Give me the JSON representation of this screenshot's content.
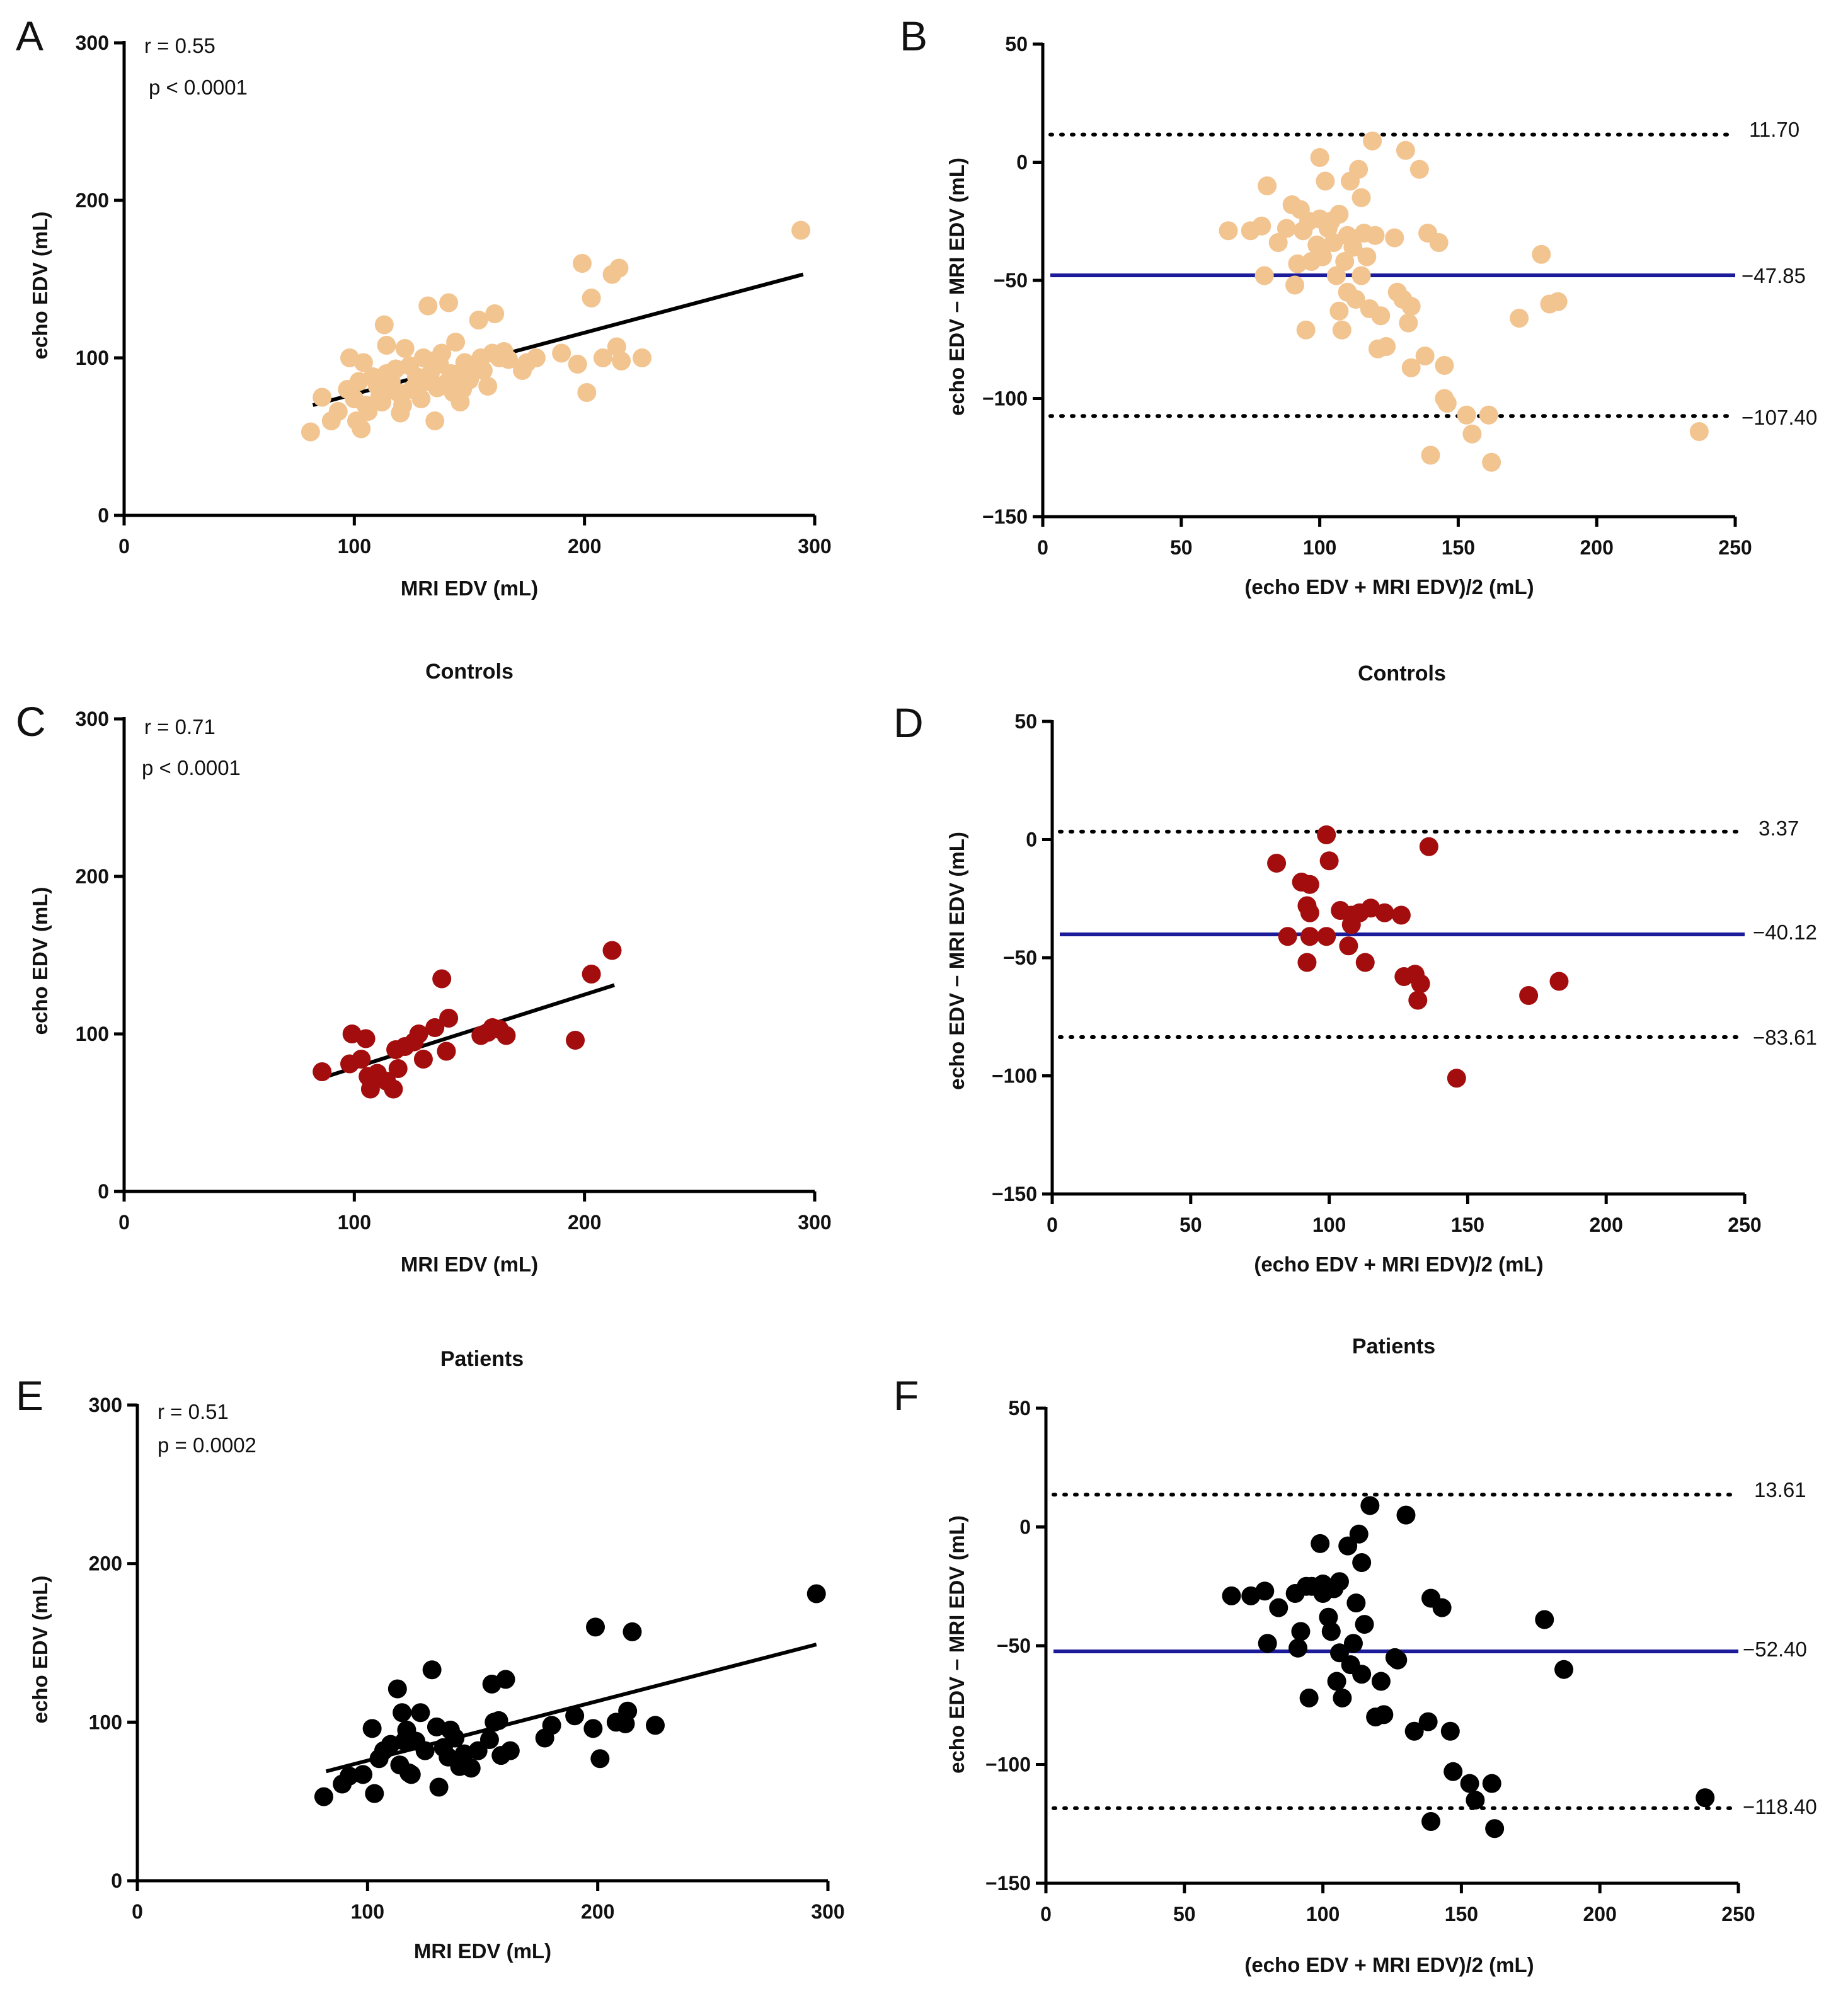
{
  "colors": {
    "panel_AB": "#f2c490",
    "panel_CD": "#a30d0d",
    "panel_EF": "#000000",
    "mean_line": "#1c1c9a"
  },
  "chart_data": [
    {
      "id": "A",
      "type": "scatter",
      "letter": "A",
      "title": "",
      "xlabel": "MRI EDV (mL)",
      "ylabel": "echo EDV (mL)",
      "xlim": [
        0,
        300
      ],
      "ylim": [
        0,
        300
      ],
      "xticks": [
        0,
        100,
        200,
        300
      ],
      "yticks": [
        0,
        100,
        200,
        300
      ],
      "stats": [
        "r = 0.55",
        "p < 0.0001"
      ],
      "color": "panel_AB",
      "fit": {
        "x": [
          82,
          295
        ],
        "y": [
          70,
          153
        ]
      },
      "points": [
        [
          81,
          53
        ],
        [
          86,
          75
        ],
        [
          90,
          60
        ],
        [
          93,
          66
        ],
        [
          97,
          80
        ],
        [
          98,
          100
        ],
        [
          100,
          74
        ],
        [
          101,
          60
        ],
        [
          102,
          85
        ],
        [
          103,
          55
        ],
        [
          104,
          97
        ],
        [
          105,
          70
        ],
        [
          106,
          66
        ],
        [
          108,
          88
        ],
        [
          110,
          82
        ],
        [
          111,
          75
        ],
        [
          112,
          72
        ],
        [
          113,
          121
        ],
        [
          114,
          90
        ],
        [
          114,
          108
        ],
        [
          115,
          80
        ],
        [
          116,
          85
        ],
        [
          118,
          93
        ],
        [
          119,
          78
        ],
        [
          120,
          65
        ],
        [
          121,
          70
        ],
        [
          122,
          106
        ],
        [
          124,
          95
        ],
        [
          125,
          80
        ],
        [
          127,
          88
        ],
        [
          129,
          74
        ],
        [
          130,
          100
        ],
        [
          131,
          85
        ],
        [
          132,
          133
        ],
        [
          133,
          90
        ],
        [
          134,
          98
        ],
        [
          135,
          60
        ],
        [
          136,
          81
        ],
        [
          137,
          96
        ],
        [
          138,
          103
        ],
        [
          140,
          84
        ],
        [
          141,
          135
        ],
        [
          142,
          90
        ],
        [
          143,
          78
        ],
        [
          144,
          110
        ],
        [
          145,
          88
        ],
        [
          146,
          72
        ],
        [
          147,
          80
        ],
        [
          148,
          97
        ],
        [
          150,
          86
        ],
        [
          152,
          94
        ],
        [
          154,
          124
        ],
        [
          155,
          100
        ],
        [
          156,
          92
        ],
        [
          158,
          82
        ],
        [
          160,
          103
        ],
        [
          161,
          128
        ],
        [
          163,
          100
        ],
        [
          165,
          104
        ],
        [
          167,
          99
        ],
        [
          173,
          92
        ],
        [
          175,
          97
        ],
        [
          179,
          100
        ],
        [
          190,
          103
        ],
        [
          197,
          96
        ],
        [
          199,
          160
        ],
        [
          201,
          78
        ],
        [
          203,
          138
        ],
        [
          208,
          100
        ],
        [
          212,
          153
        ],
        [
          214,
          107
        ],
        [
          215,
          157
        ],
        [
          216,
          98
        ],
        [
          225,
          100
        ],
        [
          294,
          181
        ]
      ]
    },
    {
      "id": "B",
      "type": "scatter",
      "letter": "B",
      "title": "",
      "xlabel": "(echo EDV + MRI EDV)/2 (mL)",
      "ylabel": "echo EDV − MRI EDV (mL)",
      "xlim": [
        0,
        250
      ],
      "ylim": [
        -150,
        50
      ],
      "xticks": [
        0,
        50,
        100,
        150,
        200,
        250
      ],
      "yticks": [
        -150,
        -100,
        -50,
        0,
        50
      ],
      "color": "panel_AB",
      "refs": {
        "upper": 11.7,
        "mean": -47.85,
        "lower": -107.4
      },
      "ref_labels": {
        "upper": "11.70",
        "mean": "−47.85",
        "lower": "−107.40"
      },
      "points": [
        [
          67,
          -29
        ],
        [
          75,
          -29
        ],
        [
          79,
          -27
        ],
        [
          80,
          -48
        ],
        [
          81,
          -10
        ],
        [
          85,
          -34
        ],
        [
          88,
          -28
        ],
        [
          90,
          -18
        ],
        [
          91,
          -52
        ],
        [
          92,
          -43
        ],
        [
          93,
          -20
        ],
        [
          94,
          -29
        ],
        [
          95,
          -71
        ],
        [
          96,
          -25
        ],
        [
          97,
          -42
        ],
        [
          99,
          -35
        ],
        [
          100,
          2
        ],
        [
          100,
          -24
        ],
        [
          101,
          -40
        ],
        [
          102,
          -8
        ],
        [
          103,
          -28
        ],
        [
          104,
          -25
        ],
        [
          105,
          -34
        ],
        [
          106,
          -48
        ],
        [
          107,
          -22
        ],
        [
          107,
          -63
        ],
        [
          108,
          -71
        ],
        [
          109,
          -42
        ],
        [
          110,
          -55
        ],
        [
          110,
          -31
        ],
        [
          111,
          -8
        ],
        [
          112,
          -36
        ],
        [
          113,
          -58
        ],
        [
          114,
          -3
        ],
        [
          115,
          -48
        ],
        [
          115,
          -15
        ],
        [
          116,
          -30
        ],
        [
          117,
          -40
        ],
        [
          118,
          -62
        ],
        [
          119,
          9
        ],
        [
          120,
          -31
        ],
        [
          121,
          -79
        ],
        [
          122,
          -65
        ],
        [
          124,
          -78
        ],
        [
          127,
          -32
        ],
        [
          128,
          -55
        ],
        [
          130,
          -58
        ],
        [
          131,
          5
        ],
        [
          132,
          -68
        ],
        [
          133,
          -61
        ],
        [
          133,
          -87
        ],
        [
          136,
          -3
        ],
        [
          138,
          -82
        ],
        [
          139,
          -30
        ],
        [
          140,
          -124
        ],
        [
          143,
          -34
        ],
        [
          145,
          -100
        ],
        [
          145,
          -86
        ],
        [
          146,
          -102
        ],
        [
          153,
          -107
        ],
        [
          155,
          -115
        ],
        [
          161,
          -107
        ],
        [
          162,
          -127
        ],
        [
          172,
          -66
        ],
        [
          180,
          -39
        ],
        [
          183,
          -60
        ],
        [
          186,
          -59
        ],
        [
          237,
          -114
        ]
      ]
    },
    {
      "id": "C",
      "type": "scatter",
      "letter": "C",
      "title": "Controls",
      "xlabel": "MRI EDV (mL)",
      "ylabel": "echo EDV (mL)",
      "xlim": [
        0,
        300
      ],
      "ylim": [
        0,
        300
      ],
      "xticks": [
        0,
        100,
        200,
        300
      ],
      "yticks": [
        0,
        100,
        200,
        300
      ],
      "stats": [
        "r = 0.71",
        "p < 0.0001"
      ],
      "color": "panel_CD",
      "fit": {
        "x": [
          88,
          213
        ],
        "y": [
          73,
          131
        ]
      },
      "points": [
        [
          86,
          76
        ],
        [
          98,
          81
        ],
        [
          99,
          100
        ],
        [
          103,
          84
        ],
        [
          105,
          97
        ],
        [
          106,
          73
        ],
        [
          107,
          65
        ],
        [
          110,
          75
        ],
        [
          114,
          70
        ],
        [
          117,
          65
        ],
        [
          118,
          90
        ],
        [
          119,
          78
        ],
        [
          122,
          92
        ],
        [
          126,
          95
        ],
        [
          128,
          100
        ],
        [
          130,
          84
        ],
        [
          135,
          104
        ],
        [
          138,
          135
        ],
        [
          140,
          89
        ],
        [
          141,
          110
        ],
        [
          155,
          99
        ],
        [
          158,
          101
        ],
        [
          160,
          104
        ],
        [
          163,
          103
        ],
        [
          166,
          99
        ],
        [
          196,
          96
        ],
        [
          203,
          138
        ],
        [
          212,
          153
        ]
      ]
    },
    {
      "id": "D",
      "type": "scatter",
      "letter": "D",
      "title": "Controls",
      "xlabel": "(echo EDV + MRI EDV)/2 (mL)",
      "ylabel": "echo EDV − MRI EDV (mL)",
      "xlim": [
        0,
        250
      ],
      "ylim": [
        -150,
        50
      ],
      "xticks": [
        0,
        50,
        100,
        150,
        200,
        250
      ],
      "yticks": [
        -150,
        -100,
        -50,
        0,
        50
      ],
      "color": "panel_CD",
      "refs": {
        "upper": 3.37,
        "mean": -40.12,
        "lower": -83.61
      },
      "ref_labels": {
        "upper": "3.37",
        "mean": "−40.12",
        "lower": "−83.61"
      },
      "points": [
        [
          81,
          -10
        ],
        [
          85,
          -41
        ],
        [
          90,
          -18
        ],
        [
          92,
          -28
        ],
        [
          92,
          -52
        ],
        [
          93,
          -19
        ],
        [
          93,
          -31
        ],
        [
          93,
          -41
        ],
        [
          99,
          2
        ],
        [
          100,
          -9
        ],
        [
          99,
          -41
        ],
        [
          104,
          -30
        ],
        [
          107,
          -45
        ],
        [
          108,
          -32
        ],
        [
          108,
          -36
        ],
        [
          111,
          -31
        ],
        [
          113,
          -52
        ],
        [
          115,
          -29
        ],
        [
          120,
          -31
        ],
        [
          126,
          -32
        ],
        [
          127,
          -58
        ],
        [
          131,
          -57
        ],
        [
          132,
          -68
        ],
        [
          133,
          -61
        ],
        [
          136,
          -3
        ],
        [
          146,
          -101
        ],
        [
          172,
          -66
        ],
        [
          183,
          -60
        ]
      ]
    },
    {
      "id": "E",
      "type": "scatter",
      "letter": "E",
      "title": "Patients",
      "xlabel": "MRI EDV (mL)",
      "ylabel": "echo EDV (mL)",
      "xlim": [
        0,
        300
      ],
      "ylim": [
        0,
        300
      ],
      "xticks": [
        0,
        100,
        200,
        300
      ],
      "yticks": [
        0,
        100,
        200,
        300
      ],
      "stats": [
        "r = 0.51",
        "p = 0.0002"
      ],
      "color": "panel_EF",
      "fit": {
        "x": [
          82,
          295
        ],
        "y": [
          69,
          149
        ]
      },
      "points": [
        [
          81,
          53
        ],
        [
          89,
          61
        ],
        [
          92,
          66
        ],
        [
          98,
          67
        ],
        [
          102,
          96
        ],
        [
          103,
          55
        ],
        [
          105,
          77
        ],
        [
          107,
          82
        ],
        [
          110,
          86
        ],
        [
          113,
          121
        ],
        [
          114,
          73
        ],
        [
          115,
          106
        ],
        [
          116,
          88
        ],
        [
          117,
          95
        ],
        [
          118,
          68
        ],
        [
          119,
          67
        ],
        [
          121,
          88
        ],
        [
          123,
          106
        ],
        [
          125,
          82
        ],
        [
          128,
          133
        ],
        [
          130,
          97
        ],
        [
          131,
          59
        ],
        [
          133,
          84
        ],
        [
          135,
          78
        ],
        [
          136,
          95
        ],
        [
          138,
          90
        ],
        [
          140,
          72
        ],
        [
          142,
          80
        ],
        [
          145,
          71
        ],
        [
          148,
          82
        ],
        [
          153,
          89
        ],
        [
          154,
          124
        ],
        [
          155,
          100
        ],
        [
          157,
          101
        ],
        [
          158,
          79
        ],
        [
          160,
          127
        ],
        [
          162,
          82
        ],
        [
          177,
          90
        ],
        [
          180,
          98
        ],
        [
          190,
          104
        ],
        [
          198,
          96
        ],
        [
          199,
          160
        ],
        [
          201,
          77
        ],
        [
          208,
          100
        ],
        [
          212,
          99
        ],
        [
          213,
          107
        ],
        [
          215,
          157
        ],
        [
          225,
          98
        ],
        [
          295,
          181
        ]
      ]
    },
    {
      "id": "F",
      "type": "scatter",
      "letter": "F",
      "title": "Patients",
      "xlabel": "(echo EDV + MRI EDV)/2 (mL)",
      "ylabel": "echo EDV − MRI EDV (mL)",
      "xlim": [
        0,
        250
      ],
      "ylim": [
        -150,
        50
      ],
      "xticks": [
        0,
        50,
        100,
        150,
        200,
        250
      ],
      "yticks": [
        -150,
        -100,
        -50,
        0,
        50
      ],
      "color": "panel_EF",
      "refs": {
        "upper": 13.61,
        "mean": -52.4,
        "lower": -118.4
      },
      "ref_labels": {
        "upper": "13.61",
        "mean": "−52.40",
        "lower": "−118.40"
      },
      "points": [
        [
          67,
          -29
        ],
        [
          74,
          -29
        ],
        [
          79,
          -27
        ],
        [
          80,
          -49
        ],
        [
          84,
          -34
        ],
        [
          90,
          -28
        ],
        [
          91,
          -51
        ],
        [
          92,
          -44
        ],
        [
          94,
          -25
        ],
        [
          95,
          -72
        ],
        [
          96,
          -25
        ],
        [
          99,
          -7
        ],
        [
          100,
          -24
        ],
        [
          100,
          -28
        ],
        [
          102,
          -38
        ],
        [
          103,
          -44
        ],
        [
          104,
          -26
        ],
        [
          105,
          -65
        ],
        [
          106,
          -23
        ],
        [
          106,
          -53
        ],
        [
          107,
          -72
        ],
        [
          109,
          -8
        ],
        [
          110,
          -58
        ],
        [
          111,
          -49
        ],
        [
          112,
          -32
        ],
        [
          113,
          -3
        ],
        [
          114,
          -15
        ],
        [
          114,
          -62
        ],
        [
          115,
          -41
        ],
        [
          117,
          9
        ],
        [
          119,
          -80
        ],
        [
          121,
          -65
        ],
        [
          122,
          -79
        ],
        [
          126,
          -55
        ],
        [
          127,
          -56
        ],
        [
          130,
          5
        ],
        [
          133,
          -86
        ],
        [
          138,
          -82
        ],
        [
          139,
          -30
        ],
        [
          139,
          -124
        ],
        [
          143,
          -34
        ],
        [
          146,
          -86
        ],
        [
          147,
          -103
        ],
        [
          153,
          -108
        ],
        [
          155,
          -115
        ],
        [
          161,
          -108
        ],
        [
          162,
          -127
        ],
        [
          180,
          -39
        ],
        [
          187,
          -60
        ],
        [
          238,
          -114
        ]
      ]
    }
  ]
}
